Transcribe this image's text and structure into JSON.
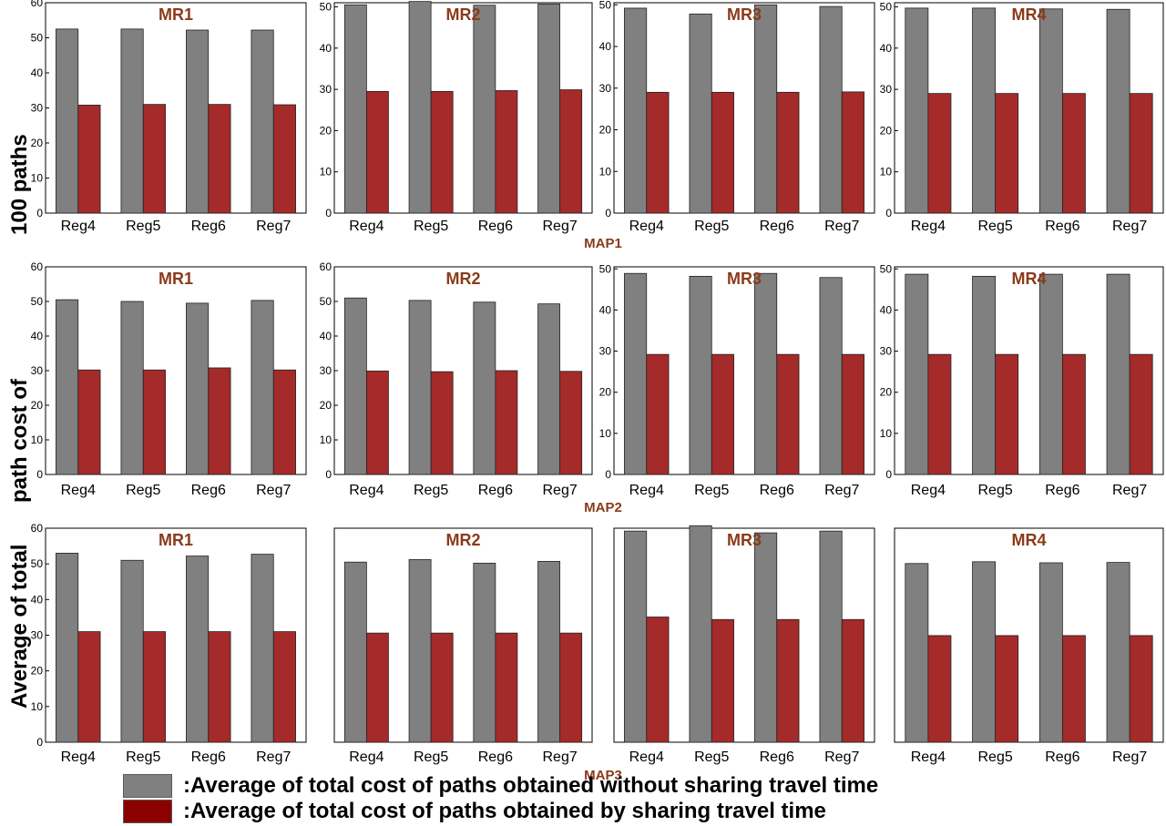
{
  "y_axis_label_parts": [
    "100 paths",
    "path cost of",
    "Average of total"
  ],
  "colors": {
    "without_sharing": "#808080",
    "with_sharing": "#a52a2a",
    "legend_with_sharing": "#8b0000",
    "map_label": "#8b3a1a",
    "panel_title": "#8b3a1a"
  },
  "legend": {
    "without_sharing": ":Average of total cost of paths obtained without sharing travel time",
    "with_sharing": ":Average of total cost of paths obtained by sharing travel time"
  },
  "maps": [
    {
      "label": "MAP1"
    },
    {
      "label": "MAP2"
    },
    {
      "label": "MAP3"
    }
  ],
  "chart_data": [
    {
      "type": "bar",
      "map": "MAP1",
      "title": "MR1",
      "categories": [
        "Reg4",
        "Reg5",
        "Reg6",
        "Reg7"
      ],
      "yticks": [
        "0",
        "10",
        "20",
        "30",
        "40",
        "50",
        "60"
      ],
      "ylim": [
        0,
        60
      ],
      "series": [
        {
          "values": [
            52.5,
            52.5,
            52.2,
            52.2
          ]
        },
        {
          "values": [
            30.8,
            31,
            31,
            30.9
          ]
        }
      ]
    },
    {
      "type": "bar",
      "map": "MAP1",
      "title": "MR2",
      "categories": [
        "Reg4",
        "Reg5",
        "Reg6",
        "Reg7"
      ],
      "yticks": [
        "0",
        "10",
        "20",
        "30",
        "40",
        "50"
      ],
      "ylim": [
        0,
        51
      ],
      "series": [
        {
          "values": [
            50.5,
            51.3,
            50.4,
            50.7
          ]
        },
        {
          "values": [
            29.5,
            29.5,
            29.7,
            29.9
          ]
        }
      ]
    },
    {
      "type": "bar",
      "map": "MAP1",
      "title": "MR3",
      "categories": [
        "Reg4",
        "Reg5",
        "Reg6",
        "Reg7"
      ],
      "yticks": [
        "0",
        "10",
        "20",
        "30",
        "40",
        "50"
      ],
      "ylim": [
        0,
        50.5
      ],
      "series": [
        {
          "values": [
            49.2,
            47.8,
            50,
            49.6
          ]
        },
        {
          "values": [
            29,
            29,
            29,
            29.1
          ]
        }
      ]
    },
    {
      "type": "bar",
      "map": "MAP1",
      "title": "MR4",
      "categories": [
        "Reg4",
        "Reg5",
        "Reg6",
        "Reg7"
      ],
      "yticks": [
        "0",
        "10",
        "20",
        "30",
        "40",
        "50"
      ],
      "ylim": [
        0,
        51
      ],
      "series": [
        {
          "values": [
            49.7,
            49.7,
            49.5,
            49.4
          ]
        },
        {
          "values": [
            29,
            29,
            29,
            29
          ]
        }
      ]
    },
    {
      "type": "bar",
      "map": "MAP2",
      "title": "MR1",
      "categories": [
        "Reg4",
        "Reg5",
        "Reg6",
        "Reg7"
      ],
      "yticks": [
        "0",
        "10",
        "20",
        "30",
        "40",
        "50",
        "60"
      ],
      "ylim": [
        0,
        60
      ],
      "series": [
        {
          "values": [
            50.5,
            50,
            49.5,
            50.3
          ]
        },
        {
          "values": [
            30.2,
            30.2,
            30.8,
            30.2
          ]
        }
      ]
    },
    {
      "type": "bar",
      "map": "MAP2",
      "title": "MR2",
      "categories": [
        "Reg4",
        "Reg5",
        "Reg6",
        "Reg7"
      ],
      "yticks": [
        "0",
        "10",
        "20",
        "30",
        "40",
        "50",
        "60"
      ],
      "ylim": [
        0,
        60
      ],
      "series": [
        {
          "values": [
            51,
            50.3,
            49.8,
            49.3
          ]
        },
        {
          "values": [
            29.9,
            29.7,
            30,
            29.8
          ]
        }
      ]
    },
    {
      "type": "bar",
      "map": "MAP2",
      "title": "MR3",
      "categories": [
        "Reg4",
        "Reg5",
        "Reg6",
        "Reg7"
      ],
      "yticks": [
        "0",
        "10",
        "20",
        "30",
        "40",
        "50"
      ],
      "ylim": [
        0,
        50.5
      ],
      "series": [
        {
          "values": [
            48.9,
            48.2,
            48.9,
            47.9
          ]
        },
        {
          "values": [
            29.2,
            29.2,
            29.2,
            29.2
          ]
        }
      ]
    },
    {
      "type": "bar",
      "map": "MAP2",
      "title": "MR4",
      "categories": [
        "Reg4",
        "Reg5",
        "Reg6",
        "Reg7"
      ],
      "yticks": [
        "0",
        "10",
        "20",
        "30",
        "40",
        "50"
      ],
      "ylim": [
        0,
        50.5
      ],
      "series": [
        {
          "values": [
            48.7,
            48.2,
            48.7,
            48.7
          ]
        },
        {
          "values": [
            29.2,
            29.2,
            29.2,
            29.2
          ]
        }
      ]
    },
    {
      "type": "bar",
      "map": "MAP3",
      "title": "MR1",
      "categories": [
        "Reg4",
        "Reg5",
        "Reg6",
        "Reg7"
      ],
      "yticks": [
        "0",
        "10",
        "20",
        "30",
        "40",
        "50",
        "60"
      ],
      "ylim": [
        0,
        60
      ],
      "series": [
        {
          "values": [
            53,
            51,
            52.2,
            52.7
          ]
        },
        {
          "values": [
            31,
            31,
            31,
            31
          ]
        }
      ]
    },
    {
      "type": "bar",
      "map": "MAP3",
      "title": "MR2",
      "categories": [
        "Reg4",
        "Reg5",
        "Reg6",
        "Reg7"
      ],
      "yticks": [],
      "ylim": [
        0,
        60
      ],
      "series": [
        {
          "values": [
            50.5,
            51.2,
            50.2,
            50.7
          ]
        },
        {
          "values": [
            30.6,
            30.6,
            30.6,
            30.6
          ]
        }
      ]
    },
    {
      "type": "bar",
      "map": "MAP3",
      "title": "MR3",
      "categories": [
        "Reg4",
        "Reg5",
        "Reg6",
        "Reg7"
      ],
      "yticks": [],
      "ylim": [
        0,
        60
      ],
      "series": [
        {
          "values": [
            59.2,
            60.7,
            58.7,
            59.2
          ]
        },
        {
          "values": [
            35.1,
            34.4,
            34.4,
            34.4
          ]
        }
      ]
    },
    {
      "type": "bar",
      "map": "MAP3",
      "title": "MR4",
      "categories": [
        "Reg4",
        "Reg5",
        "Reg6",
        "Reg7"
      ],
      "yticks": [],
      "ylim": [
        0,
        60
      ],
      "series": [
        {
          "values": [
            50.1,
            50.6,
            50.3,
            50.4
          ]
        },
        {
          "values": [
            29.9,
            29.9,
            29.9,
            29.9
          ]
        }
      ]
    }
  ]
}
